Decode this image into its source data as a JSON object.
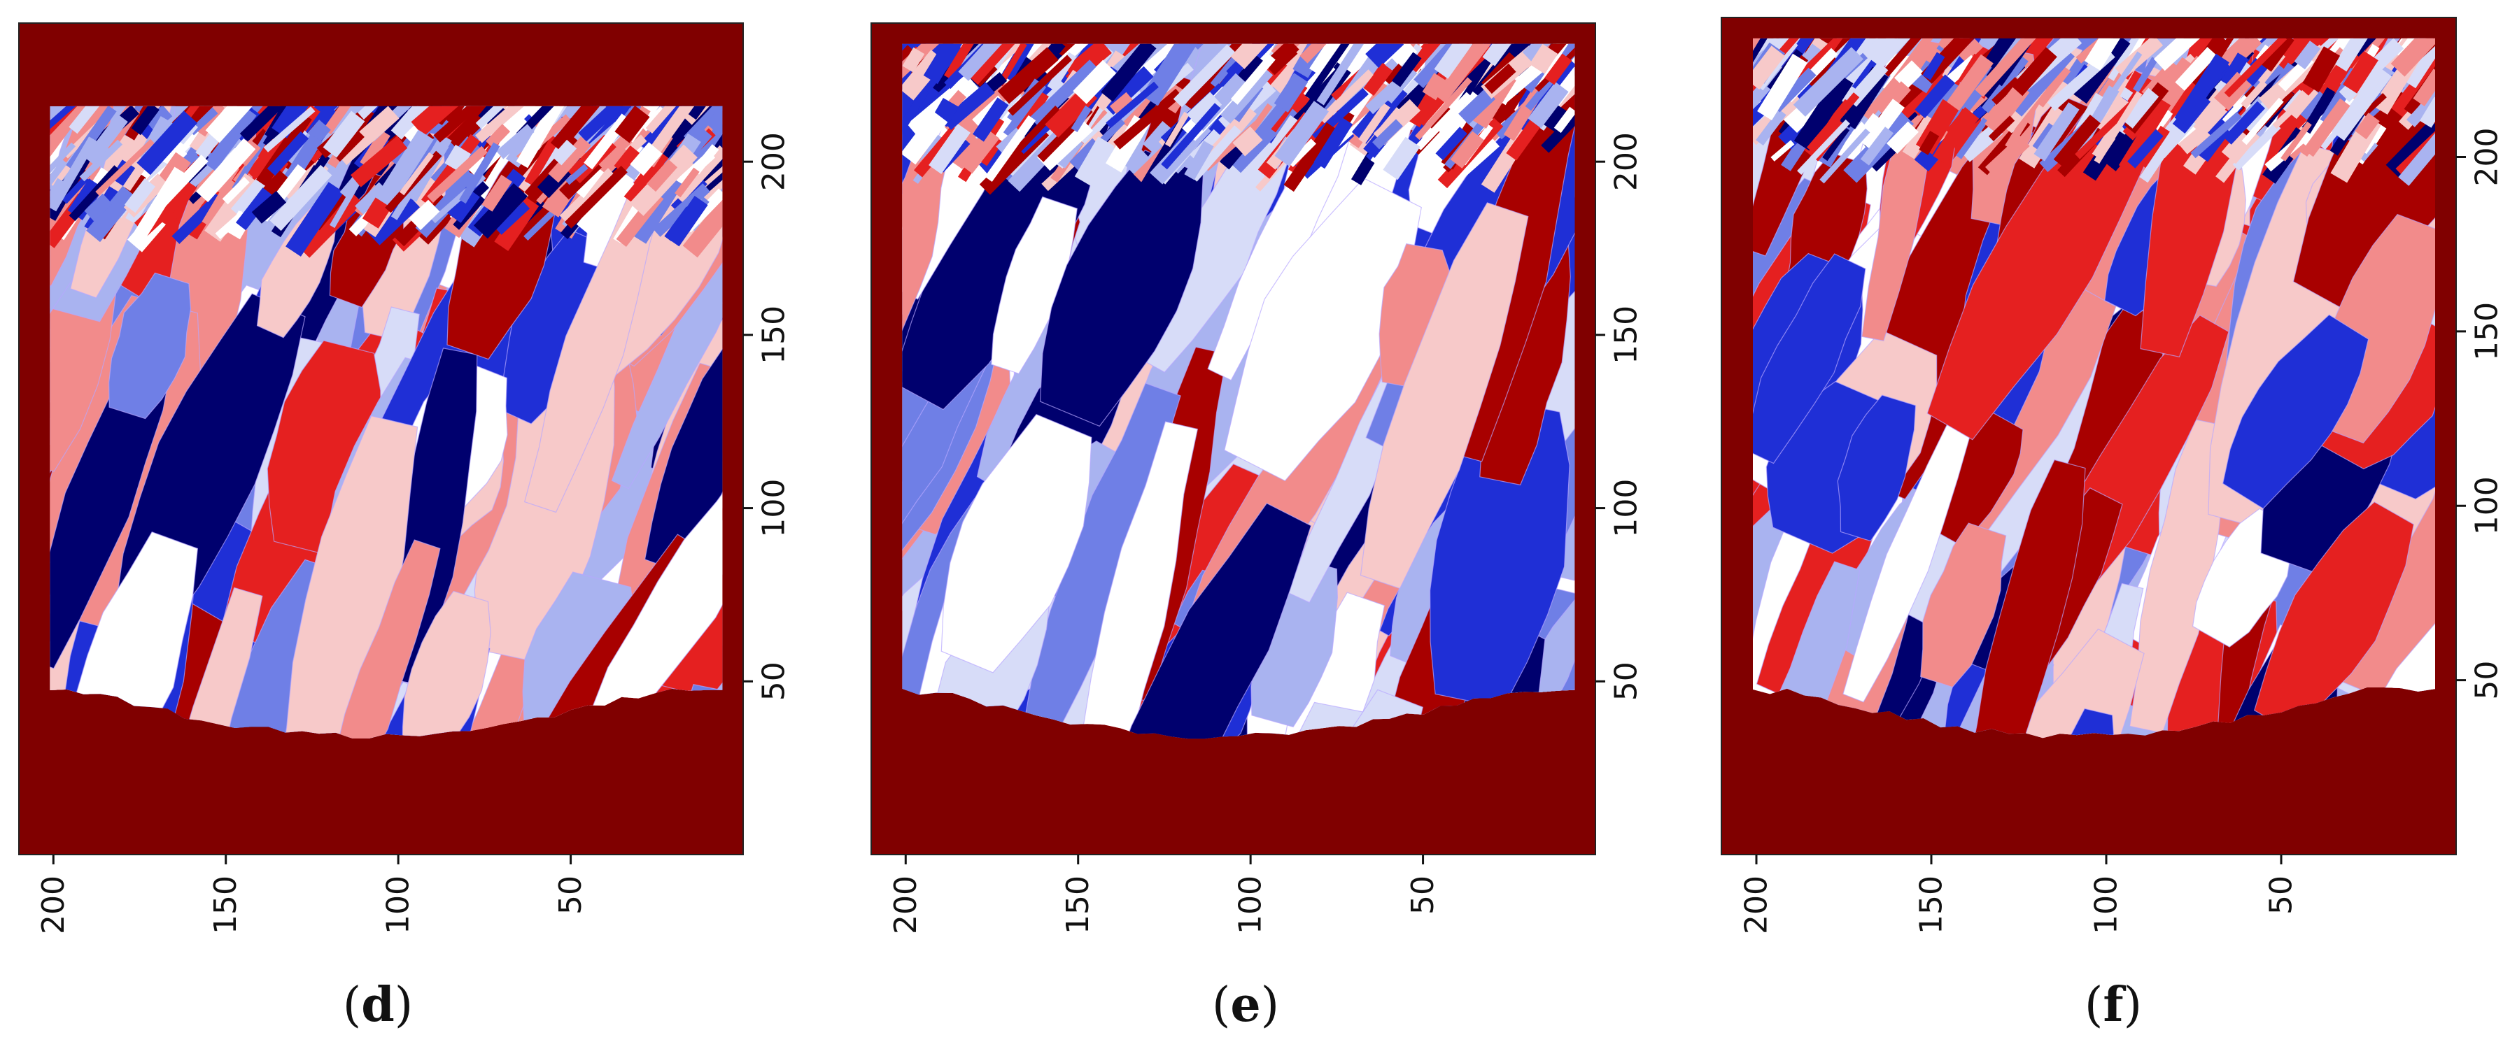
{
  "colors": {
    "background": "#800000",
    "blue_dark": "#00006e",
    "blue": "#1f2fd6",
    "blue_mid": "#6f7fe6",
    "blue_light": "#a9b3f0",
    "blue_pale": "#d7dcf8",
    "white": "#ffffff",
    "red_pale": "#f7c9c9",
    "red_light": "#f28b8b",
    "red": "#e52020",
    "red_dark": "#a80000",
    "grain_boundary": "#b7a6ff"
  },
  "chart_data": [
    {
      "type": "heatmap",
      "caption_paren_open": "(",
      "caption_letter": "d",
      "caption_paren_close": ")",
      "x_ticks": [
        "200",
        "150",
        "100",
        "50"
      ],
      "x_tick_values": [
        200,
        150,
        100,
        50
      ],
      "y_ticks": [
        "50",
        "100",
        "150",
        "200"
      ],
      "y_tick_values": [
        50,
        100,
        150,
        200
      ],
      "xlim": [
        210,
        0
      ],
      "ylim": [
        0,
        240
      ],
      "x_axis": "bottom, reversed",
      "y_axis": "right",
      "melt_pool_top": 216,
      "seed": 11
    },
    {
      "type": "heatmap",
      "caption_paren_open": "(",
      "caption_letter": "e",
      "caption_paren_close": ")",
      "x_ticks": [
        "200",
        "150",
        "100",
        "50"
      ],
      "x_tick_values": [
        200,
        150,
        100,
        50
      ],
      "y_ticks": [
        "50",
        "100",
        "150",
        "200"
      ],
      "y_tick_values": [
        50,
        100,
        150,
        200
      ],
      "xlim": [
        210,
        0
      ],
      "ylim": [
        0,
        240
      ],
      "x_axis": "bottom, reversed",
      "y_axis": "right",
      "melt_pool_top": 234,
      "seed": 23
    },
    {
      "type": "heatmap",
      "caption_paren_open": "(",
      "caption_letter": "f",
      "caption_paren_close": ")",
      "x_ticks": [
        "200",
        "150",
        "100",
        "50"
      ],
      "x_tick_values": [
        200,
        150,
        100,
        50
      ],
      "y_ticks": [
        "50",
        "100",
        "150",
        "200"
      ],
      "y_tick_values": [
        50,
        100,
        150,
        200
      ],
      "xlim": [
        210,
        0
      ],
      "ylim": [
        0,
        240
      ],
      "x_axis": "bottom, reversed",
      "y_axis": "right",
      "melt_pool_top": 234,
      "seed": 37
    }
  ]
}
